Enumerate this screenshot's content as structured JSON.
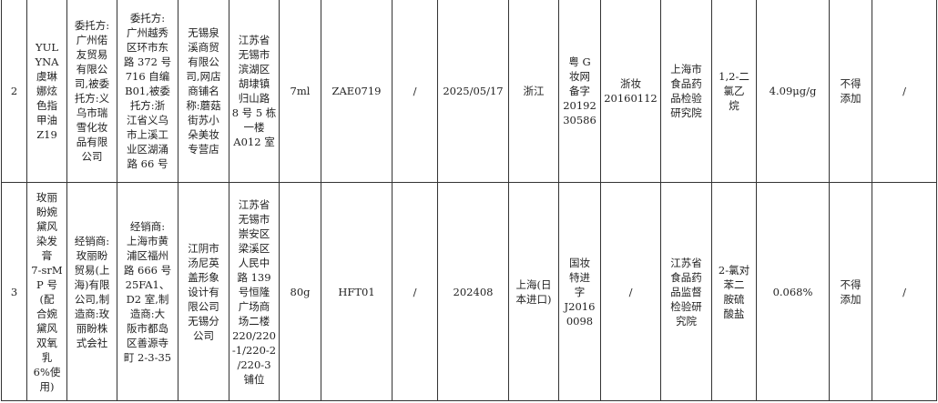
{
  "rows": [
    {
      "index": "2",
      "product": "YUL\nYNA\n虞琳\n娜炫\n色指\n甲油\nZ19",
      "entrust": "委托方:\n广州偌\n友贸易\n有限公\n司,被委\n托方:义\n乌市瑞\n雪化妆\n品有限\n公司",
      "entrust_address": "委托方:\n广州越秀\n区环市东\n路 372 号\n716 自编\nB01,被委\n托方:浙\n江省义乌\n市上溪工\n业区湖涌\n路 66 号",
      "sampled_unit": "无锡泉\n溪商贸\n有限公\n司,网店\n商铺名\n称:蘑菇\n街苏小\n朵美妆\n专营店",
      "sampled_address": "江苏省\n无锡市\n滨湖区\n胡埭镇\n归山路\n8 号 5 栋\n一楼\nA012 室",
      "spec": "7ml",
      "batch": "ZAE0719",
      "col8": "/",
      "date": "2025/05/17",
      "origin": "浙江",
      "record_no": "粤 G\n妆网\n备字\n20192\n30586",
      "license": "浙妆\n20160112",
      "lab": "上海市\n食品药\n品检验\n研究院",
      "item": "1,2-二\n氯乙\n烷",
      "result": "4.09μg/g",
      "standard": "不得\n添加",
      "remark": "/"
    },
    {
      "index": "3",
      "product": "玫丽\n盼婉\n黛风\n染发\n膏\n7-srM\nP 号\n(配\n合婉\n黛风\n双氧\n乳\n6%使\n用)",
      "entrust": "经销商:\n玫丽盼\n贸易(上\n海)有限\n公司,制\n造商:玫\n丽盼株\n式会社",
      "entrust_address": "经销商:\n上海市黄\n浦区福州\n路 666 号\n25FA1、\nD2 室,制\n造商:大\n阪市都岛\n区善源寺\n町 2-3-35",
      "sampled_unit": "江阴市\n汤尼英\n盖形象\n设计有\n限公司\n无锡分\n公司",
      "sampled_address": "江苏省\n无锡市\n崇安区\n梁溪区\n人民中\n路 139\n号恒隆\n广场商\n场二楼\n220/220\n-1/220-2\n/220-3\n铺位",
      "spec": "80g",
      "batch": "HFT01",
      "col8": "/",
      "date": "202408",
      "origin": "上海(日\n本进口)",
      "record_no": "国妆\n特进\n字\nJ2016\n0098",
      "license": "/",
      "lab": "江苏省\n食品药\n品监督\n检验研\n究院",
      "item": "2-氯对\n苯二\n胺硫\n酸盐",
      "result": "0.068%",
      "standard": "不得\n添加",
      "remark": "/"
    }
  ]
}
